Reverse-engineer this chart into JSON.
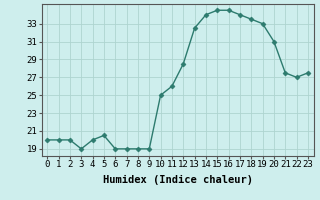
{
  "x": [
    0,
    1,
    2,
    3,
    4,
    5,
    6,
    7,
    8,
    9,
    10,
    11,
    12,
    13,
    14,
    15,
    16,
    17,
    18,
    19,
    20,
    21,
    22,
    23
  ],
  "y": [
    20,
    20,
    20,
    19,
    20,
    20.5,
    19,
    19,
    19,
    19,
    25,
    26,
    28.5,
    32.5,
    34,
    34.5,
    34.5,
    34,
    33.5,
    33,
    31,
    27.5,
    27,
    27.5
  ],
  "line_color": "#2d7b6e",
  "marker": "D",
  "marker_size": 2.5,
  "bg_color": "#ceeeed",
  "grid_color": "#aed4d0",
  "xlabel": "Humidex (Indice chaleur)",
  "yticks": [
    19,
    21,
    23,
    25,
    27,
    29,
    31,
    33
  ],
  "xticks": [
    0,
    1,
    2,
    3,
    4,
    5,
    6,
    7,
    8,
    9,
    10,
    11,
    12,
    13,
    14,
    15,
    16,
    17,
    18,
    19,
    20,
    21,
    22,
    23
  ],
  "ylim": [
    18.2,
    35.2
  ],
  "xlim": [
    -0.5,
    23.5
  ],
  "xlabel_fontsize": 7.5,
  "tick_fontsize": 6.5,
  "line_width": 1.0
}
